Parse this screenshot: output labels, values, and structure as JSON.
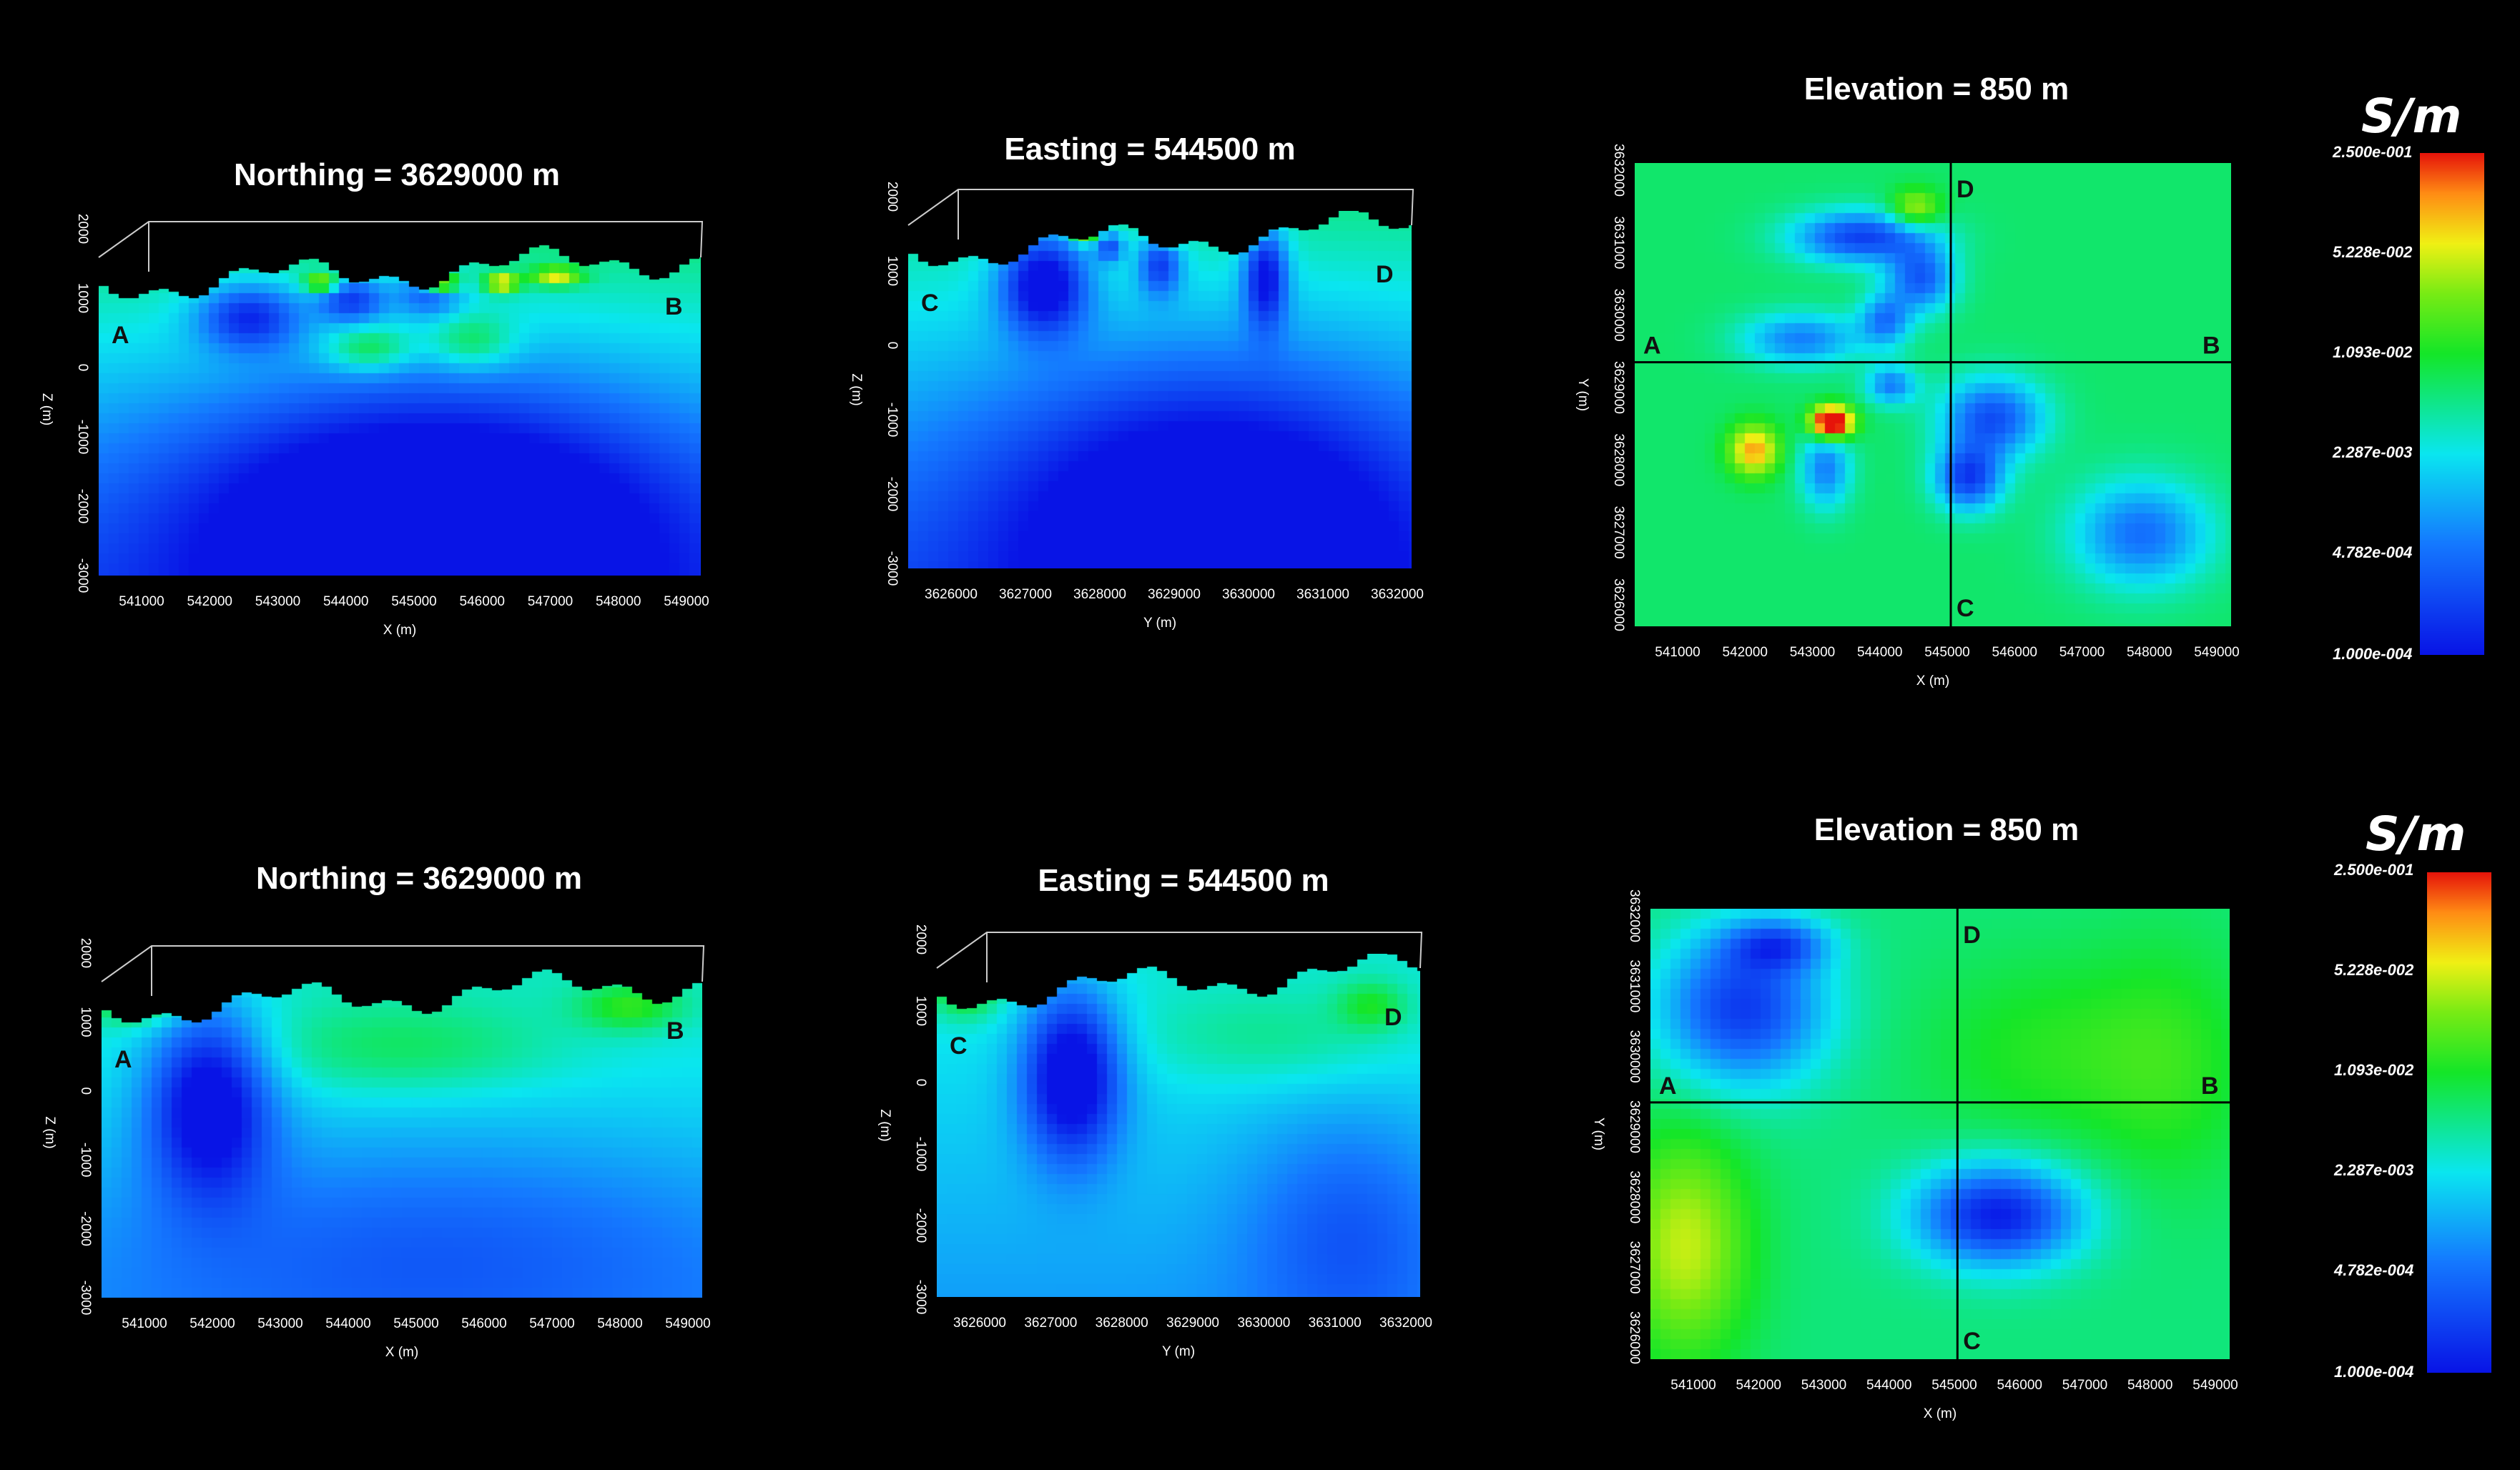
{
  "chart_data": [
    {
      "id": "top-northing",
      "type": "heatmap",
      "view": "vertical-section",
      "title": "Northing = 3629000 m",
      "xlabel": "X (m)",
      "ylabel": "Z (m)",
      "x_ticks": [
        "541000",
        "542000",
        "543000",
        "544000",
        "545000",
        "546000",
        "547000",
        "548000",
        "549000"
      ],
      "y_ticks": [
        "2000",
        "1000",
        "0",
        "-1000",
        "-2000",
        "-3000"
      ],
      "markers": [
        "A",
        "B"
      ],
      "anomalies": [
        {
          "u": 0.25,
          "v": 0.22,
          "sx": 0.06,
          "sy": 0.07,
          "amp": -2.2
        },
        {
          "u": 0.42,
          "v": 0.17,
          "sx": 0.04,
          "sy": 0.05,
          "amp": -2.0
        },
        {
          "u": 0.55,
          "v": 0.15,
          "sx": 0.04,
          "sy": 0.05,
          "amp": -1.6
        },
        {
          "u": 0.37,
          "v": 0.12,
          "sx": 0.02,
          "sy": 0.02,
          "amp": 2.4
        },
        {
          "u": 0.57,
          "v": 0.12,
          "sx": 0.02,
          "sy": 0.02,
          "amp": 3.2
        },
        {
          "u": 0.67,
          "v": 0.12,
          "sx": 0.02,
          "sy": 0.02,
          "amp": 2.6
        },
        {
          "u": 0.76,
          "v": 0.1,
          "sx": 0.03,
          "sy": 0.02,
          "amp": 2.2
        },
        {
          "u": 0.45,
          "v": 0.32,
          "sx": 0.05,
          "sy": 0.05,
          "amp": 1.4
        },
        {
          "u": 0.62,
          "v": 0.3,
          "sx": 0.05,
          "sy": 0.06,
          "amp": 1.2
        },
        {
          "u": 0.55,
          "v": 0.82,
          "sx": 0.28,
          "sy": 0.28,
          "amp": -3.0
        }
      ],
      "base": 3.1,
      "grad": -2.2
    },
    {
      "id": "top-easting",
      "type": "heatmap",
      "view": "vertical-section",
      "title": "Easting = 544500 m",
      "xlabel": "Y (m)",
      "ylabel": "Z (m)",
      "x_ticks": [
        "3626000",
        "3627000",
        "3628000",
        "3629000",
        "3630000",
        "3631000",
        "3632000"
      ],
      "y_ticks": [
        "2000",
        "1000",
        "0",
        "-1000",
        "-2000",
        "-3000"
      ],
      "markers": [
        "C",
        "D"
      ],
      "anomalies": [
        {
          "u": 0.27,
          "v": 0.2,
          "sx": 0.06,
          "sy": 0.1,
          "amp": -3.0
        },
        {
          "u": 0.5,
          "v": 0.15,
          "sx": 0.03,
          "sy": 0.06,
          "amp": -2.0
        },
        {
          "u": 0.71,
          "v": 0.18,
          "sx": 0.03,
          "sy": 0.1,
          "amp": -2.6
        },
        {
          "u": 0.4,
          "v": 0.1,
          "sx": 0.02,
          "sy": 0.03,
          "amp": -1.8
        },
        {
          "u": 0.35,
          "v": 0.06,
          "sx": 0.02,
          "sy": 0.02,
          "amp": 2.4
        },
        {
          "u": 0.52,
          "v": 0.06,
          "sx": 0.02,
          "sy": 0.02,
          "amp": 2.2
        },
        {
          "u": 0.67,
          "v": 0.06,
          "sx": 0.02,
          "sy": 0.02,
          "amp": 3.2
        },
        {
          "u": 0.6,
          "v": 0.85,
          "sx": 0.3,
          "sy": 0.3,
          "amp": -2.6
        }
      ],
      "base": 3.0,
      "grad": -2.0
    },
    {
      "id": "top-elevation",
      "type": "heatmap",
      "view": "plan-slice",
      "title": "Elevation = 850 m",
      "xlabel": "X (m)",
      "ylabel": "Y (m)",
      "x_ticks": [
        "541000",
        "542000",
        "543000",
        "544000",
        "545000",
        "546000",
        "547000",
        "548000",
        "549000"
      ],
      "y_ticks": [
        "3626000",
        "3627000",
        "3628000",
        "3629000",
        "3630000",
        "3631000",
        "3632000"
      ],
      "markers": [
        "A",
        "B",
        "C",
        "D"
      ],
      "anomalies": [
        {
          "u": 0.38,
          "v": 0.16,
          "sx": 0.08,
          "sy": 0.04,
          "amp": -2.6
        },
        {
          "u": 0.48,
          "v": 0.25,
          "sx": 0.04,
          "sy": 0.05,
          "amp": -2.2
        },
        {
          "u": 0.42,
          "v": 0.34,
          "sx": 0.03,
          "sy": 0.04,
          "amp": -1.8
        },
        {
          "u": 0.28,
          "v": 0.38,
          "sx": 0.07,
          "sy": 0.04,
          "amp": -1.8
        },
        {
          "u": 0.6,
          "v": 0.55,
          "sx": 0.06,
          "sy": 0.06,
          "amp": -2.4
        },
        {
          "u": 0.56,
          "v": 0.68,
          "sx": 0.04,
          "sy": 0.05,
          "amp": -2.6
        },
        {
          "u": 0.85,
          "v": 0.8,
          "sx": 0.08,
          "sy": 0.08,
          "amp": -2.0
        },
        {
          "u": 0.32,
          "v": 0.66,
          "sx": 0.03,
          "sy": 0.06,
          "amp": -1.8
        },
        {
          "u": 0.43,
          "v": 0.48,
          "sx": 0.03,
          "sy": 0.03,
          "amp": -1.8
        },
        {
          "u": 0.33,
          "v": 0.56,
          "sx": 0.025,
          "sy": 0.025,
          "amp": 4.2
        },
        {
          "u": 0.2,
          "v": 0.62,
          "sx": 0.03,
          "sy": 0.04,
          "amp": 2.2
        },
        {
          "u": 0.47,
          "v": 0.1,
          "sx": 0.03,
          "sy": 0.03,
          "amp": 1.6
        }
      ],
      "base": 3.2,
      "grad": 0
    },
    {
      "id": "bottom-northing",
      "type": "heatmap",
      "view": "vertical-section",
      "title": "Northing = 3629000 m",
      "xlabel": "X (m)",
      "ylabel": "Z (m)",
      "x_ticks": [
        "541000",
        "542000",
        "543000",
        "544000",
        "545000",
        "546000",
        "547000",
        "548000",
        "549000"
      ],
      "y_ticks": [
        "2000",
        "1000",
        "0",
        "-1000",
        "-2000",
        "-3000"
      ],
      "markers": [
        "A",
        "B"
      ],
      "anomalies": [
        {
          "u": 0.18,
          "v": 0.4,
          "sx": 0.07,
          "sy": 0.2,
          "amp": -2.8
        },
        {
          "u": 0.06,
          "v": 0.1,
          "sx": 0.05,
          "sy": 0.05,
          "amp": 1.4
        },
        {
          "u": 0.5,
          "v": 0.25,
          "sx": 0.18,
          "sy": 0.1,
          "amp": 0.8
        },
        {
          "u": 0.88,
          "v": 0.12,
          "sx": 0.06,
          "sy": 0.05,
          "amp": 1.2
        },
        {
          "u": 0.55,
          "v": 0.85,
          "sx": 0.4,
          "sy": 0.25,
          "amp": -1.0
        }
      ],
      "base": 2.7,
      "grad": -0.9
    },
    {
      "id": "bottom-easting",
      "type": "heatmap",
      "view": "vertical-section",
      "title": "Easting = 544500 m",
      "xlabel": "Y (m)",
      "ylabel": "Z (m)",
      "x_ticks": [
        "3626000",
        "3627000",
        "3628000",
        "3629000",
        "3630000",
        "3631000",
        "3632000"
      ],
      "y_ticks": [
        "2000",
        "1000",
        "0",
        "-1000",
        "-2000",
        "-3000"
      ],
      "markers": [
        "C",
        "D"
      ],
      "anomalies": [
        {
          "u": 0.28,
          "v": 0.35,
          "sx": 0.07,
          "sy": 0.17,
          "amp": -3.0
        },
        {
          "u": 0.06,
          "v": 0.1,
          "sx": 0.05,
          "sy": 0.06,
          "amp": 1.4
        },
        {
          "u": 0.7,
          "v": 0.25,
          "sx": 0.2,
          "sy": 0.1,
          "amp": 0.6
        },
        {
          "u": 0.9,
          "v": 0.15,
          "sx": 0.05,
          "sy": 0.05,
          "amp": 1.0
        },
        {
          "u": 0.85,
          "v": 0.8,
          "sx": 0.15,
          "sy": 0.25,
          "amp": -1.0
        }
      ],
      "base": 2.6,
      "grad": -0.9
    },
    {
      "id": "bottom-elevation",
      "type": "heatmap",
      "view": "plan-slice",
      "title": "Elevation = 850 m",
      "xlabel": "X (m)",
      "ylabel": "Y (m)",
      "x_ticks": [
        "541000",
        "542000",
        "543000",
        "544000",
        "545000",
        "546000",
        "547000",
        "548000",
        "549000"
      ],
      "y_ticks": [
        "3626000",
        "3627000",
        "3628000",
        "3629000",
        "3630000",
        "3631000",
        "3632000"
      ],
      "markers": [
        "A",
        "B",
        "C",
        "D"
      ],
      "anomalies": [
        {
          "u": 0.16,
          "v": 0.22,
          "sx": 0.1,
          "sy": 0.12,
          "amp": -2.6
        },
        {
          "u": 0.22,
          "v": 0.08,
          "sx": 0.06,
          "sy": 0.04,
          "amp": -1.8
        },
        {
          "u": 0.6,
          "v": 0.68,
          "sx": 0.1,
          "sy": 0.08,
          "amp": -3.0
        },
        {
          "u": 0.06,
          "v": 0.75,
          "sx": 0.08,
          "sy": 0.18,
          "amp": 1.6
        },
        {
          "u": 0.68,
          "v": 0.32,
          "sx": 0.15,
          "sy": 0.15,
          "amp": 0.6
        },
        {
          "u": 0.9,
          "v": 0.35,
          "sx": 0.1,
          "sy": 0.2,
          "amp": 0.6
        }
      ],
      "base": 3.1,
      "grad": 0
    }
  ],
  "colorbars": [
    {
      "id": "colorbar-top",
      "unit": "S/m",
      "ticks": [
        "2.500e-001",
        "5.228e-002",
        "1.093e-002",
        "2.287e-003",
        "4.782e-004",
        "1.000e-004"
      ]
    },
    {
      "id": "colorbar-bottom",
      "unit": "S/m",
      "ticks": [
        "2.500e-001",
        "5.228e-002",
        "1.093e-002",
        "2.287e-003",
        "4.782e-004",
        "1.000e-004"
      ]
    }
  ]
}
